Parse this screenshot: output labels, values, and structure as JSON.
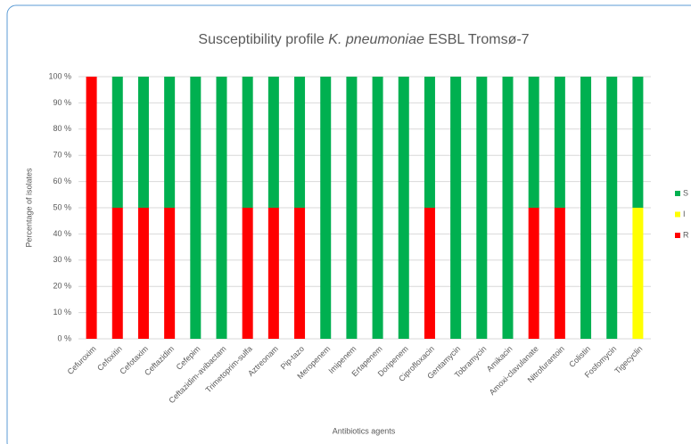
{
  "chart_data": {
    "type": "stacked_bar",
    "title": [
      "Susceptibility profile",
      "K. pneumoniae",
      "ESBL Tromsø-7"
    ],
    "x_label": "Antibiotics agents",
    "y_label": "Percentage of isolates",
    "categories": [
      "Cefuroxim",
      "Cefoxitin",
      "Cefotaxim",
      "Ceftazidim",
      "Cefepim",
      "Ceftazidim-avibactam",
      "Trimetoprim-sulfa",
      "Aztreonam",
      "Pip-tazo",
      "Meropenem",
      "Imipenem",
      "Ertapenem",
      "Doripenem",
      "Ciprofloxacin",
      "Gentamycin",
      "Tobramycin",
      "Amikacin",
      "Amoxi-clavulanate",
      "Nitrofurantoin",
      "Colistin",
      "Fosfomycin",
      "Tigecyclin"
    ],
    "series": [
      {
        "name": "R",
        "color": "#ff0000",
        "values": [
          100,
          50,
          50,
          50,
          0,
          0,
          50,
          50,
          50,
          0,
          0,
          0,
          0,
          50,
          0,
          0,
          0,
          50,
          50,
          0,
          0,
          0
        ]
      },
      {
        "name": "I",
        "color": "#ffff00",
        "values": [
          0,
          0,
          0,
          0,
          0,
          0,
          0,
          0,
          0,
          0,
          0,
          0,
          0,
          0,
          0,
          0,
          0,
          0,
          0,
          0,
          0,
          50
        ]
      },
      {
        "name": "S",
        "color": "#00b050",
        "values": [
          0,
          50,
          50,
          50,
          100,
          100,
          50,
          50,
          50,
          100,
          100,
          100,
          100,
          50,
          100,
          100,
          100,
          50,
          50,
          100,
          100,
          50
        ]
      }
    ],
    "ylim": [
      0,
      100
    ],
    "yticks": [
      {
        "value": 0,
        "label": "0 %"
      },
      {
        "value": 10,
        "label": "10 %"
      },
      {
        "value": 20,
        "label": "20 %"
      },
      {
        "value": 30,
        "label": "30 %"
      },
      {
        "value": 40,
        "label": "40 %"
      },
      {
        "value": 50,
        "label": "50 %"
      },
      {
        "value": 60,
        "label": "60 %"
      },
      {
        "value": 70,
        "label": "70 %"
      },
      {
        "value": 80,
        "label": "80 %"
      },
      {
        "value": 90,
        "label": "90 %"
      },
      {
        "value": 100,
        "label": "100 %"
      }
    ],
    "grid": true,
    "legend": "right"
  }
}
